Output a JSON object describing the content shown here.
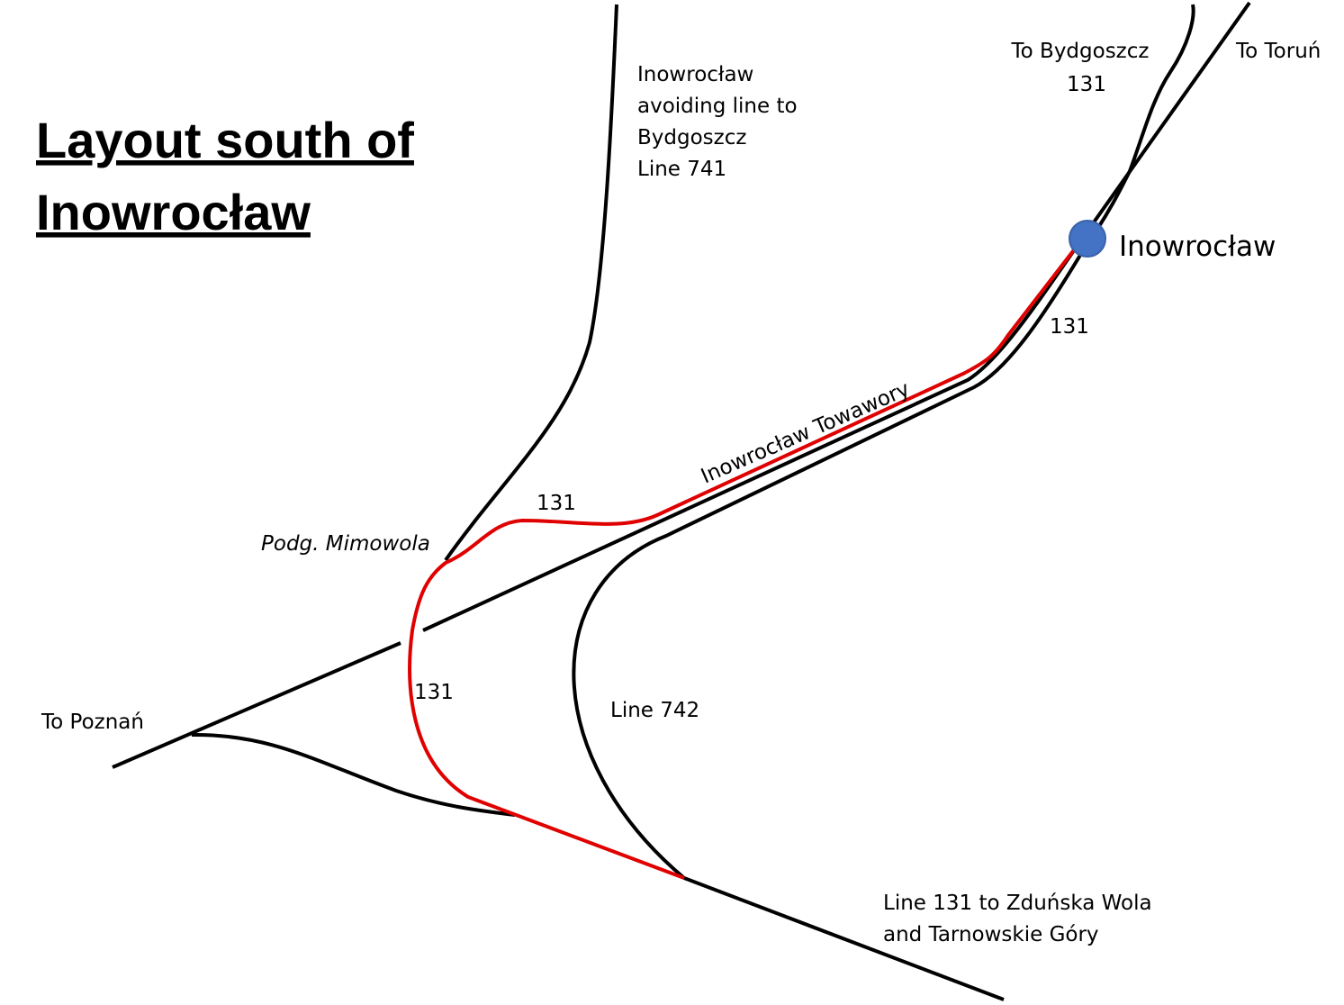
{
  "title": [
    "Layout south of",
    "Inowrocław"
  ],
  "labels": {
    "avoiding_line": [
      "Inowrocław",
      "avoiding line to",
      "Bydgoszcz",
      "Line 741"
    ],
    "to_bydgoszcz": [
      "To Bydgoszcz",
      "131"
    ],
    "to_torun": "To Toruń",
    "station": "Inowrocław",
    "line_131_station": "131",
    "towawory": "Inowrocław Towawory",
    "line_131_curve": "131",
    "mimowola": "Podg. Mimowola",
    "line_131_south": "131",
    "to_poznan": "To Poznań",
    "line_742": "Line 742",
    "zdunska": [
      "Line 131 to Zduńska Wola",
      "and Tarnowskie Góry"
    ]
  }
}
